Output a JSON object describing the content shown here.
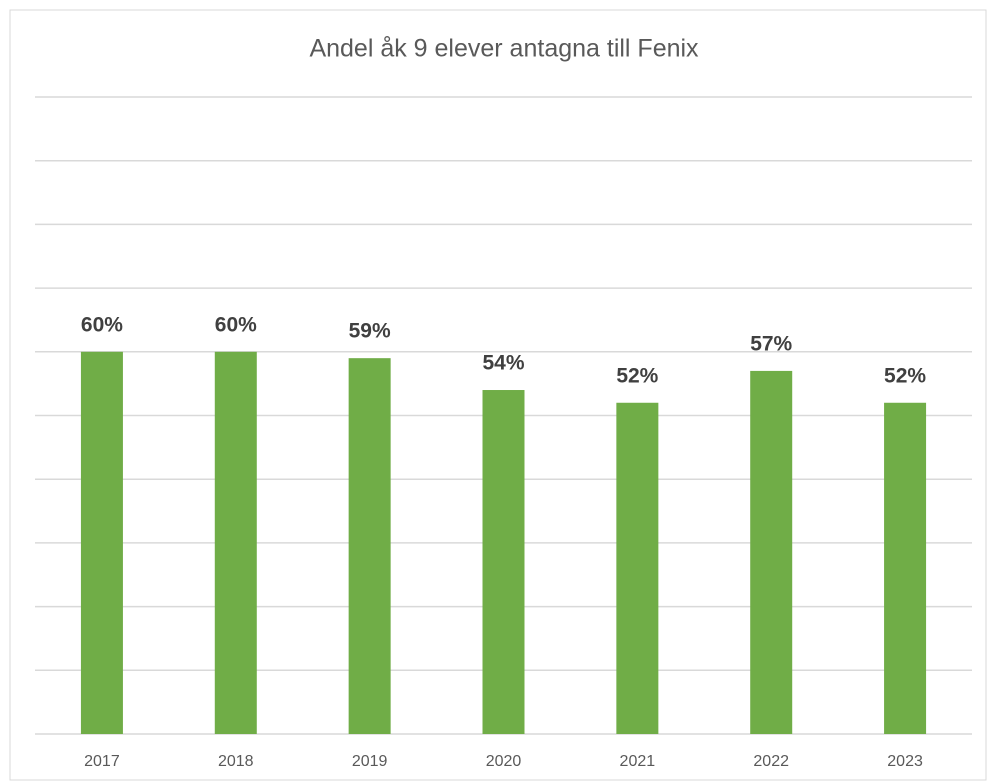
{
  "chart_data": {
    "type": "bar",
    "title": "Andel åk 9 elever antagna till Fenix",
    "categories": [
      "2017",
      "2018",
      "2019",
      "2020",
      "2021",
      "2022",
      "2023"
    ],
    "values": [
      60,
      60,
      59,
      54,
      52,
      57,
      52
    ],
    "value_labels": [
      "60%",
      "60%",
      "59%",
      "54%",
      "52%",
      "57%",
      "52%"
    ],
    "color": "#70ad47",
    "ylim": [
      0,
      100
    ],
    "yticks": [
      0,
      10,
      20,
      30,
      40,
      50,
      60,
      70,
      80,
      90,
      100
    ],
    "grid": true
  }
}
